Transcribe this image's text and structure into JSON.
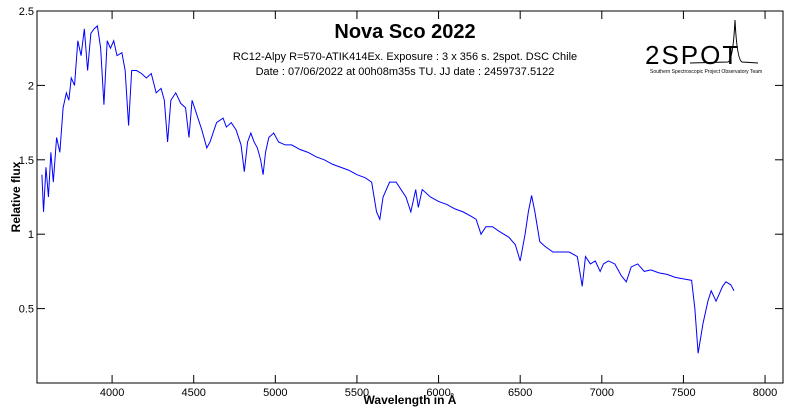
{
  "chart_data": {
    "type": "line",
    "title": "Nova Sco 2022",
    "subtitle": [
      "RC12-Alpy R=570-ATIK414Ex. Exposure : 3 x 356 s. 2spot. DSC Chile",
      "Date : 07/06/2022 at 00h08m35s TU. JJ date : 2459737.5122"
    ],
    "logo": {
      "text": "2SPOT",
      "caption": "Southern Spectroscopic Project Observatory Team"
    },
    "x_label": "Wavelength in Å",
    "y_label": "Relative flux",
    "xlim": [
      3540,
      8110
    ],
    "ylim": [
      0,
      2.5
    ],
    "xticks": [
      4000,
      4500,
      5000,
      5500,
      6000,
      6500,
      7000,
      7500,
      8000
    ],
    "yticks": [
      0.5,
      1,
      1.5,
      2,
      2.5
    ],
    "x": [
      3570,
      3580,
      3595,
      3610,
      3625,
      3640,
      3660,
      3680,
      3700,
      3720,
      3735,
      3750,
      3770,
      3790,
      3810,
      3830,
      3850,
      3870,
      3890,
      3910,
      3930,
      3950,
      3970,
      3990,
      4010,
      4030,
      4060,
      4080,
      4101,
      4120,
      4150,
      4180,
      4210,
      4240,
      4270,
      4300,
      4320,
      4340,
      4360,
      4390,
      4420,
      4450,
      4471,
      4490,
      4520,
      4550,
      4580,
      4600,
      4640,
      4680,
      4700,
      4730,
      4760,
      4790,
      4810,
      4830,
      4850,
      4870,
      4890,
      4910,
      4925,
      4940,
      4960,
      4990,
      5020,
      5060,
      5100,
      5150,
      5200,
      5250,
      5300,
      5350,
      5400,
      5450,
      5500,
      5550,
      5590,
      5620,
      5640,
      5660,
      5700,
      5740,
      5770,
      5800,
      5830,
      5860,
      5876,
      5900,
      5950,
      6000,
      6050,
      6100,
      6150,
      6200,
      6230,
      6260,
      6290,
      6330,
      6370,
      6400,
      6430,
      6470,
      6500,
      6530,
      6550,
      6570,
      6590,
      6620,
      6650,
      6700,
      6750,
      6800,
      6850,
      6880,
      6900,
      6930,
      6960,
      6990,
      7010,
      7040,
      7080,
      7120,
      7150,
      7180,
      7220,
      7260,
      7300,
      7350,
      7400,
      7450,
      7500,
      7550,
      7570,
      7590,
      7605,
      7620,
      7650,
      7670,
      7700,
      7740,
      7760,
      7790,
      7810
    ],
    "series": [
      {
        "name": "Nova Sco 2022",
        "color": "#0000ff",
        "values": [
          1.4,
          1.15,
          1.45,
          1.25,
          1.55,
          1.35,
          1.65,
          1.55,
          1.85,
          1.95,
          1.9,
          2.05,
          2.0,
          2.3,
          2.2,
          2.38,
          2.1,
          2.35,
          2.38,
          2.4,
          2.25,
          1.87,
          2.3,
          2.25,
          2.3,
          2.2,
          2.22,
          2.1,
          1.73,
          2.1,
          2.1,
          2.08,
          2.05,
          2.08,
          1.95,
          1.98,
          1.9,
          1.62,
          1.9,
          1.95,
          1.88,
          1.85,
          1.65,
          1.9,
          1.8,
          1.7,
          1.58,
          1.62,
          1.75,
          1.78,
          1.72,
          1.75,
          1.7,
          1.6,
          1.42,
          1.62,
          1.68,
          1.62,
          1.58,
          1.5,
          1.4,
          1.55,
          1.65,
          1.68,
          1.62,
          1.6,
          1.6,
          1.57,
          1.55,
          1.52,
          1.5,
          1.47,
          1.45,
          1.43,
          1.4,
          1.38,
          1.35,
          1.15,
          1.1,
          1.25,
          1.35,
          1.35,
          1.3,
          1.25,
          1.15,
          1.3,
          1.18,
          1.3,
          1.25,
          1.22,
          1.2,
          1.17,
          1.15,
          1.12,
          1.1,
          1.0,
          1.05,
          1.05,
          1.02,
          1.0,
          0.98,
          0.93,
          0.82,
          1.0,
          1.15,
          1.26,
          1.15,
          0.95,
          0.92,
          0.88,
          0.88,
          0.88,
          0.85,
          0.65,
          0.85,
          0.8,
          0.82,
          0.75,
          0.8,
          0.82,
          0.8,
          0.72,
          0.68,
          0.78,
          0.8,
          0.75,
          0.76,
          0.74,
          0.73,
          0.71,
          0.7,
          0.69,
          0.5,
          0.2,
          0.3,
          0.4,
          0.55,
          0.62,
          0.55,
          0.65,
          0.68,
          0.66,
          0.62
        ]
      }
    ]
  }
}
